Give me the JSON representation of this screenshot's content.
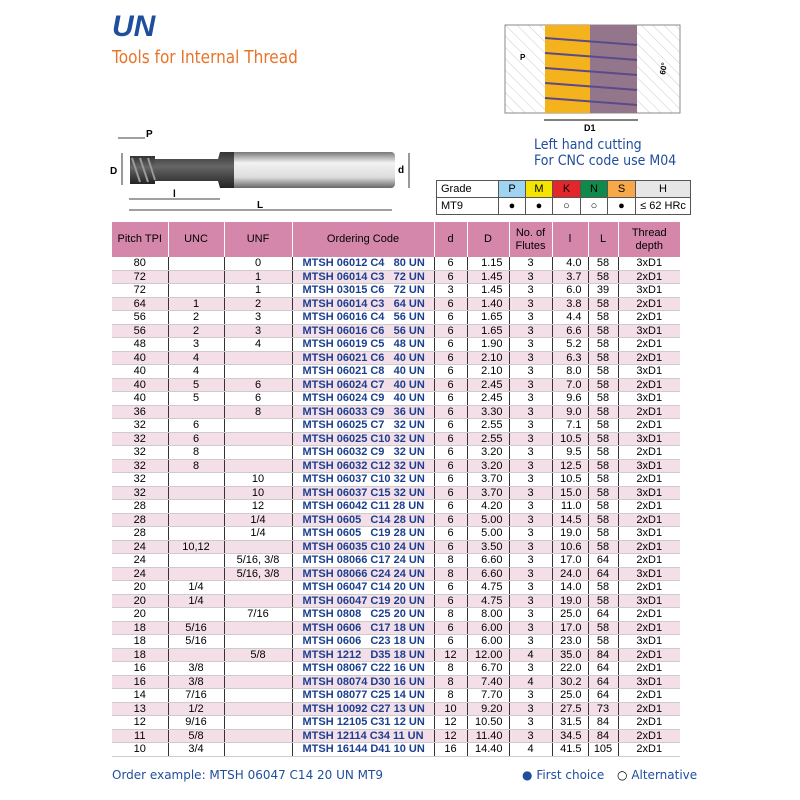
{
  "header": {
    "title": "UN",
    "subtitle": "Tools for Internal Thread"
  },
  "tool_drawing": {
    "labels": {
      "P": "P",
      "D": "D",
      "l": "l",
      "L": "L",
      "d": "d"
    }
  },
  "thread_drawing": {
    "labels": {
      "P": "P",
      "angle": "60°",
      "D1": "D1"
    },
    "note_line1": "Left hand cutting",
    "note_line2": "For CNC code use M04"
  },
  "grade_table": {
    "header": [
      "Grade",
      "P",
      "M",
      "K",
      "N",
      "S",
      "H"
    ],
    "header_colors": [
      "#ffffff",
      "#9fd3f2",
      "#f5e400",
      "#e3262a",
      "#0f8a4a",
      "#f7a94a",
      "#e6e6e6"
    ],
    "row": [
      "MT9",
      "●",
      "●",
      "○",
      "○",
      "●",
      "≤ 62 HRc"
    ]
  },
  "table": {
    "columns": [
      "Pitch TPI",
      "UNC",
      "UNF",
      "Ordering Code",
      "d",
      "D",
      "No. of Flutes",
      "l",
      "L",
      "Thread depth"
    ],
    "rows": [
      [
        "80",
        "",
        "0",
        "MTSH 06012 C4   80 UN",
        "6",
        "1.15",
        "3",
        "4.0",
        "58",
        "3xD1"
      ],
      [
        "72",
        "",
        "1",
        "MTSH 06014 C3   72 UN",
        "6",
        "1.45",
        "3",
        "3.7",
        "58",
        "2xD1"
      ],
      [
        "72",
        "",
        "1",
        "MTSH 03015 C6   72 UN",
        "3",
        "1.45",
        "3",
        "6.0",
        "39",
        "3xD1"
      ],
      [
        "64",
        "1",
        "2",
        "MTSH 06014 C3   64 UN",
        "6",
        "1.40",
        "3",
        "3.8",
        "58",
        "2xD1"
      ],
      [
        "56",
        "2",
        "3",
        "MTSH 06016 C4   56 UN",
        "6",
        "1.65",
        "3",
        "4.4",
        "58",
        "2xD1"
      ],
      [
        "56",
        "2",
        "3",
        "MTSH 06016 C6   56 UN",
        "6",
        "1.65",
        "3",
        "6.6",
        "58",
        "3xD1"
      ],
      [
        "48",
        "3",
        "4",
        "MTSH 06019 C5   48 UN",
        "6",
        "1.90",
        "3",
        "5.2",
        "58",
        "2xD1"
      ],
      [
        "40",
        "4",
        "",
        "MTSH 06021 C6   40 UN",
        "6",
        "2.10",
        "3",
        "6.3",
        "58",
        "2xD1"
      ],
      [
        "40",
        "4",
        "",
        "MTSH 06021 C8   40 UN",
        "6",
        "2.10",
        "3",
        "8.0",
        "58",
        "3xD1"
      ],
      [
        "40",
        "5",
        "6",
        "MTSH 06024 C7   40 UN",
        "6",
        "2.45",
        "3",
        "7.0",
        "58",
        "2xD1"
      ],
      [
        "40",
        "5",
        "6",
        "MTSH 06024 C9   40 UN",
        "6",
        "2.45",
        "3",
        "9.6",
        "58",
        "3xD1"
      ],
      [
        "36",
        "",
        "8",
        "MTSH 06033 C9   36 UN",
        "6",
        "3.30",
        "3",
        "9.0",
        "58",
        "2xD1"
      ],
      [
        "32",
        "6",
        "",
        "MTSH 06025 C7   32 UN",
        "6",
        "2.55",
        "3",
        "7.1",
        "58",
        "2xD1"
      ],
      [
        "32",
        "6",
        "",
        "MTSH 06025 C10 32 UN",
        "6",
        "2.55",
        "3",
        "10.5",
        "58",
        "3xD1"
      ],
      [
        "32",
        "8",
        "",
        "MTSH 06032 C9   32 UN",
        "6",
        "3.20",
        "3",
        "9.5",
        "58",
        "2xD1"
      ],
      [
        "32",
        "8",
        "",
        "MTSH 06032 C12 32 UN",
        "6",
        "3.20",
        "3",
        "12.5",
        "58",
        "3xD1"
      ],
      [
        "32",
        "",
        "10",
        "MTSH 06037 C10 32 UN",
        "6",
        "3.70",
        "3",
        "10.5",
        "58",
        "2xD1"
      ],
      [
        "32",
        "",
        "10",
        "MTSH 06037 C15 32 UN",
        "6",
        "3.70",
        "3",
        "15.0",
        "58",
        "3xD1"
      ],
      [
        "28",
        "",
        "12",
        "MTSH 06042 C11 28 UN",
        "6",
        "4.20",
        "3",
        "11.0",
        "58",
        "2xD1"
      ],
      [
        "28",
        "",
        "1/4",
        "MTSH 0605   C14 28 UN",
        "6",
        "5.00",
        "3",
        "14.5",
        "58",
        "2xD1"
      ],
      [
        "28",
        "",
        "1/4",
        "MTSH 0605   C19 28 UN",
        "6",
        "5.00",
        "3",
        "19.0",
        "58",
        "3xD1"
      ],
      [
        "24",
        "10,12",
        "",
        "MTSH 06035 C10 24 UN",
        "6",
        "3.50",
        "3",
        "10.6",
        "58",
        "2xD1"
      ],
      [
        "24",
        "",
        "5/16, 3/8",
        "MTSH 08066 C17 24 UN",
        "8",
        "6.60",
        "3",
        "17.0",
        "64",
        "2xD1"
      ],
      [
        "24",
        "",
        "5/16, 3/8",
        "MTSH 08066 C24 24 UN",
        "8",
        "6.60",
        "3",
        "24.0",
        "64",
        "3xD1"
      ],
      [
        "20",
        "1/4",
        "",
        "MTSH 06047 C14 20 UN",
        "6",
        "4.75",
        "3",
        "14.0",
        "58",
        "2xD1"
      ],
      [
        "20",
        "1/4",
        "",
        "MTSH 06047 C19 20 UN",
        "6",
        "4.75",
        "3",
        "19.0",
        "58",
        "3xD1"
      ],
      [
        "20",
        "",
        "7/16",
        "MTSH 0808   C25 20 UN",
        "8",
        "8.00",
        "3",
        "25.0",
        "64",
        "2xD1"
      ],
      [
        "18",
        "5/16",
        "",
        "MTSH 0606   C17 18 UN",
        "6",
        "6.00",
        "3",
        "17.0",
        "58",
        "2xD1"
      ],
      [
        "18",
        "5/16",
        "",
        "MTSH 0606   C23 18 UN",
        "6",
        "6.00",
        "3",
        "23.0",
        "58",
        "3xD1"
      ],
      [
        "18",
        "",
        "5/8",
        "MTSH 1212   D35 18 UN",
        "12",
        "12.00",
        "4",
        "35.0",
        "84",
        "2xD1"
      ],
      [
        "16",
        "3/8",
        "",
        "MTSH 08067 C22 16 UN",
        "8",
        "6.70",
        "3",
        "22.0",
        "64",
        "2xD1"
      ],
      [
        "16",
        "3/8",
        "",
        "MTSH 08074 D30 16 UN",
        "8",
        "7.40",
        "4",
        "30.2",
        "64",
        "3xD1"
      ],
      [
        "14",
        "7/16",
        "",
        "MTSH 08077 C25 14 UN",
        "8",
        "7.70",
        "3",
        "25.0",
        "64",
        "2xD1"
      ],
      [
        "13",
        "1/2",
        "",
        "MTSH 10092 C27 13 UN",
        "10",
        "9.20",
        "3",
        "27.5",
        "73",
        "2xD1"
      ],
      [
        "12",
        "9/16",
        "",
        "MTSH 12105 C31 12 UN",
        "12",
        "10.50",
        "3",
        "31.5",
        "84",
        "2xD1"
      ],
      [
        "11",
        "5/8",
        "",
        "MTSH 12114 C34 11 UN",
        "12",
        "11.40",
        "3",
        "34.5",
        "84",
        "2xD1"
      ],
      [
        "10",
        "3/4",
        "",
        "MTSH 16144 D41 10 UN",
        "16",
        "14.40",
        "4",
        "41.5",
        "105",
        "2xD1"
      ]
    ]
  },
  "footer": {
    "order_example": "Order example: MTSH 06047 C14 20 UN MT9",
    "first_choice": "First choice",
    "alternative": "Alternative"
  }
}
